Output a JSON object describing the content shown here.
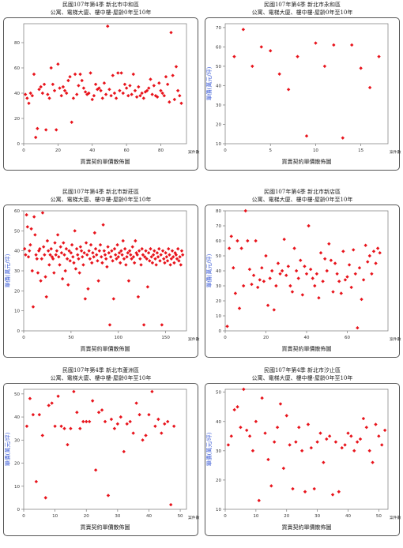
{
  "chart_data": [
    {
      "type": "scatter",
      "title": "民國107年第4季 新北市中和區",
      "subtitle": "公寓、電梯大廈、樓中樓-屋齡0年至10年",
      "xlabel": "買賣契約單價散佈圖",
      "ylabel": "",
      "xtick_suffix": "案件數",
      "xlim": [
        0,
        95
      ],
      "ylim": [
        0,
        95
      ],
      "xticks": [
        0,
        20,
        40,
        60,
        80
      ],
      "yticks": [
        0,
        20,
        40,
        60,
        80
      ],
      "marker_color": "#e8141c",
      "grid": false,
      "x": [
        1,
        2,
        3,
        4,
        5,
        6,
        7,
        8,
        9,
        10,
        11,
        12,
        13,
        14,
        15,
        16,
        17,
        18,
        19,
        20,
        21,
        22,
        23,
        24,
        25,
        26,
        27,
        28,
        29,
        30,
        31,
        32,
        33,
        34,
        35,
        36,
        37,
        38,
        39,
        40,
        41,
        42,
        43,
        44,
        45,
        46,
        47,
        48,
        49,
        50,
        51,
        52,
        53,
        54,
        55,
        56,
        57,
        58,
        59,
        60,
        61,
        62,
        63,
        64,
        65,
        66,
        67,
        68,
        69,
        70,
        71,
        72,
        73,
        74,
        75,
        76,
        77,
        78,
        79,
        80,
        81,
        82,
        83,
        84,
        85,
        86,
        87,
        88,
        89,
        90,
        91,
        92
      ],
      "y": [
        39,
        36,
        32,
        40,
        38,
        55,
        5,
        12,
        43,
        45,
        40,
        47,
        11,
        39,
        36,
        60,
        47,
        42,
        11,
        63,
        44,
        38,
        45,
        42,
        40,
        50,
        53,
        17,
        36,
        55,
        39,
        46,
        55,
        50,
        44,
        41,
        39,
        40,
        56,
        35,
        38,
        47,
        43,
        44,
        42,
        36,
        48,
        39,
        93,
        43,
        38,
        54,
        40,
        36,
        56,
        42,
        56,
        40,
        47,
        44,
        38,
        46,
        39,
        55,
        42,
        37,
        45,
        38,
        40,
        36,
        41,
        42,
        44,
        51,
        39,
        46,
        38,
        37,
        48,
        42,
        40,
        38,
        53,
        47,
        33,
        88,
        54,
        35,
        61,
        42,
        38,
        32
      ]
    },
    {
      "type": "scatter",
      "title": "民國107年第4季 新北市永和區",
      "subtitle": "公寓、電梯大廈、樓中樓-屋齡0年至10年",
      "xlabel": "買賣契約單價散佈圖",
      "ylabel": "單價(萬元/坪)",
      "xtick_suffix": "案件數",
      "xlim": [
        0,
        18
      ],
      "ylim": [
        10,
        72
      ],
      "xticks": [
        0,
        5,
        10,
        15
      ],
      "yticks": [
        10,
        20,
        30,
        40,
        50,
        60,
        70
      ],
      "marker_color": "#e8141c",
      "grid": false,
      "x": [
        1,
        2,
        3,
        4,
        5,
        6,
        7,
        8,
        9,
        10,
        11,
        12,
        13,
        14,
        15,
        16,
        17
      ],
      "y": [
        55,
        69,
        50,
        60,
        58,
        46,
        38,
        55,
        14,
        62,
        50,
        61,
        13,
        61,
        49,
        39,
        55
      ]
    },
    {
      "type": "scatter",
      "title": "民國107年第4季 新北市新莊區",
      "subtitle": "公寓、電梯大廈、樓中樓-屋齡0年至10年",
      "xlabel": "買賣契約單價散佈圖",
      "ylabel": "單價(萬元/坪)",
      "xtick_suffix": "案件數",
      "xlim": [
        0,
        172
      ],
      "ylim": [
        0,
        60
      ],
      "xticks": [
        0,
        50,
        100,
        150
      ],
      "yticks": [
        0,
        10,
        20,
        30,
        40,
        50,
        60
      ],
      "marker_color": "#e8141c",
      "grid": false,
      "x": [
        1,
        2,
        3,
        4,
        5,
        6,
        7,
        8,
        9,
        10,
        11,
        12,
        13,
        14,
        15,
        16,
        17,
        18,
        19,
        20,
        21,
        22,
        23,
        24,
        25,
        26,
        27,
        28,
        29,
        30,
        31,
        32,
        33,
        34,
        35,
        36,
        37,
        38,
        39,
        40,
        41,
        42,
        43,
        44,
        45,
        46,
        47,
        48,
        49,
        50,
        51,
        52,
        53,
        54,
        55,
        56,
        57,
        58,
        59,
        60,
        61,
        62,
        63,
        64,
        65,
        66,
        67,
        68,
        69,
        70,
        71,
        72,
        73,
        74,
        75,
        76,
        77,
        78,
        79,
        80,
        81,
        82,
        83,
        84,
        85,
        86,
        87,
        88,
        89,
        90,
        91,
        92,
        93,
        94,
        95,
        96,
        97,
        98,
        99,
        100,
        101,
        102,
        103,
        104,
        105,
        106,
        107,
        108,
        109,
        110,
        111,
        112,
        113,
        114,
        115,
        116,
        117,
        118,
        119,
        120,
        121,
        122,
        123,
        124,
        125,
        126,
        127,
        128,
        129,
        130,
        131,
        132,
        133,
        134,
        135,
        136,
        137,
        138,
        139,
        140,
        141,
        142,
        143,
        144,
        145,
        146,
        147,
        148,
        149,
        150,
        151,
        152,
        153,
        154,
        155,
        156,
        157,
        158,
        159,
        160,
        161,
        162,
        163,
        164,
        165,
        166,
        167,
        168
      ],
      "y": [
        41,
        38,
        58,
        52,
        37,
        40,
        43,
        51,
        30,
        12,
        57,
        48,
        38,
        36,
        29,
        40,
        41,
        25,
        36,
        59,
        42,
        38,
        27,
        17,
        45,
        40,
        33,
        38,
        41,
        37,
        36,
        29,
        44,
        38,
        40,
        48,
        37,
        33,
        42,
        39,
        26,
        44,
        38,
        30,
        41,
        36,
        23,
        40,
        35,
        39,
        43,
        37,
        34,
        50,
        31,
        41,
        38,
        36,
        29,
        42,
        40,
        37,
        33,
        39,
        16,
        44,
        38,
        21,
        40,
        36,
        43,
        34,
        39,
        37,
        49,
        41,
        38,
        35,
        25,
        40,
        43,
        37,
        34,
        53,
        40,
        38,
        36,
        32,
        42,
        39,
        3,
        37,
        40,
        35,
        16,
        41,
        38,
        36,
        43,
        37,
        39,
        34,
        40,
        38,
        45,
        36,
        41,
        33,
        37,
        39,
        25,
        40,
        38,
        36,
        42,
        37,
        34,
        45,
        39,
        38,
        17,
        40,
        36,
        33,
        41,
        38,
        3,
        37,
        40,
        36,
        22,
        39,
        35,
        41,
        37,
        34,
        38,
        40,
        36,
        33,
        39,
        37,
        41,
        35,
        38,
        3,
        40,
        36,
        34,
        39,
        37,
        35,
        41,
        38,
        33,
        36,
        40,
        37,
        34,
        39,
        38,
        36,
        41,
        35,
        37,
        33,
        40,
        38
      ]
    },
    {
      "type": "scatter",
      "title": "民國107年第4季 新北市新店區",
      "subtitle": "公寓、電梯大廈、樓中樓-屋齡0年至10年",
      "xlabel": "買賣契約單價散佈圖",
      "ylabel": "單價(萬元/坪)",
      "xtick_suffix": "案件數",
      "xlim": [
        0,
        80
      ],
      "ylim": [
        0,
        80
      ],
      "xticks": [
        0,
        20,
        40,
        60
      ],
      "yticks": [
        0,
        10,
        20,
        30,
        40,
        50,
        60,
        70,
        80
      ],
      "marker_color": "#e8141c",
      "grid": false,
      "x": [
        1,
        2,
        3,
        4,
        5,
        6,
        7,
        8,
        9,
        10,
        11,
        12,
        13,
        14,
        15,
        16,
        17,
        18,
        19,
        20,
        21,
        22,
        23,
        24,
        25,
        26,
        27,
        28,
        29,
        30,
        31,
        32,
        33,
        34,
        35,
        36,
        37,
        38,
        39,
        40,
        41,
        42,
        43,
        44,
        45,
        46,
        47,
        48,
        49,
        50,
        51,
        52,
        53,
        54,
        55,
        56,
        57,
        58,
        59,
        60,
        61,
        62,
        63,
        64,
        65,
        66,
        67,
        68,
        69,
        70,
        71,
        72,
        73,
        74,
        75,
        76
      ],
      "y": [
        3,
        55,
        63,
        42,
        25,
        60,
        15,
        55,
        30,
        80,
        60,
        41,
        31,
        37,
        60,
        29,
        34,
        42,
        33,
        50,
        17,
        35,
        40,
        14,
        30,
        45,
        38,
        40,
        61,
        37,
        43,
        30,
        26,
        55,
        40,
        35,
        47,
        24,
        43,
        38,
        70,
        41,
        35,
        30,
        38,
        22,
        52,
        33,
        48,
        40,
        58,
        47,
        26,
        45,
        38,
        33,
        25,
        53,
        34,
        36,
        44,
        29,
        54,
        38,
        2,
        42,
        21,
        34,
        57,
        46,
        50,
        38,
        53,
        45,
        55,
        52
      ]
    },
    {
      "type": "scatter",
      "title": "民國107年第4季 新北市蘆洲區",
      "subtitle": "公寓、電梯大廈、樓中樓-屋齡0年至10年",
      "xlabel": "買賣契約單價散佈圖",
      "ylabel": "單價(萬元/坪)",
      "xtick_suffix": "案件數",
      "xlim": [
        0,
        52
      ],
      "ylim": [
        0,
        52
      ],
      "xticks": [
        0,
        10,
        20,
        30,
        40,
        50
      ],
      "yticks": [
        0,
        10,
        20,
        30,
        40,
        50
      ],
      "marker_color": "#e8141c",
      "grid": false,
      "x": [
        1,
        2,
        3,
        4,
        5,
        6,
        7,
        8,
        9,
        10,
        11,
        12,
        13,
        14,
        15,
        16,
        17,
        18,
        19,
        20,
        21,
        22,
        23,
        24,
        25,
        26,
        27,
        28,
        29,
        30,
        31,
        32,
        33,
        34,
        35,
        36,
        37,
        38,
        39,
        40,
        41,
        42,
        43,
        44,
        45,
        46,
        47,
        48
      ],
      "y": [
        36,
        48,
        41,
        12,
        41,
        32,
        5,
        45,
        46,
        36,
        49,
        36,
        35,
        28,
        35,
        51,
        42,
        35,
        38,
        38,
        38,
        47,
        17,
        42,
        43,
        38,
        6,
        39,
        35,
        37,
        40,
        25,
        37,
        38,
        33,
        46,
        41,
        30,
        32,
        41,
        51,
        36,
        39,
        33,
        37,
        38,
        2,
        36
      ]
    },
    {
      "type": "scatter",
      "title": "民國107年第4季 新北市汐止區",
      "subtitle": "公寓、電梯大廈、樓中樓-屋齡0年至10年",
      "xlabel": "買賣契約單價散佈圖",
      "ylabel": "單價(萬元/坪)",
      "xtick_suffix": "案件數",
      "xlim": [
        0,
        53
      ],
      "ylim": [
        10,
        51
      ],
      "xticks": [
        0,
        10,
        20,
        30,
        40,
        50
      ],
      "yticks": [
        10,
        20,
        30,
        40,
        50
      ],
      "marker_color": "#e8141c",
      "grid": false,
      "x": [
        1,
        2,
        3,
        4,
        5,
        6,
        7,
        8,
        9,
        10,
        11,
        12,
        13,
        14,
        15,
        16,
        17,
        18,
        19,
        20,
        21,
        22,
        23,
        24,
        25,
        26,
        27,
        28,
        29,
        30,
        31,
        32,
        33,
        34,
        35,
        36,
        37,
        38,
        39,
        40,
        41,
        42,
        43,
        44,
        45,
        46,
        47,
        48,
        49,
        50,
        51,
        52
      ],
      "y": [
        32,
        35,
        44,
        45,
        38,
        51,
        37,
        35,
        30,
        40,
        13,
        48,
        36,
        27,
        18,
        33,
        38,
        46,
        24,
        42,
        32,
        17,
        33,
        38,
        30,
        16,
        39,
        31,
        17,
        33,
        36,
        26,
        34,
        35,
        15,
        33,
        16,
        31,
        32,
        36,
        35,
        30,
        33,
        34,
        41,
        38,
        30,
        26,
        39,
        35,
        32,
        37
      ]
    }
  ]
}
